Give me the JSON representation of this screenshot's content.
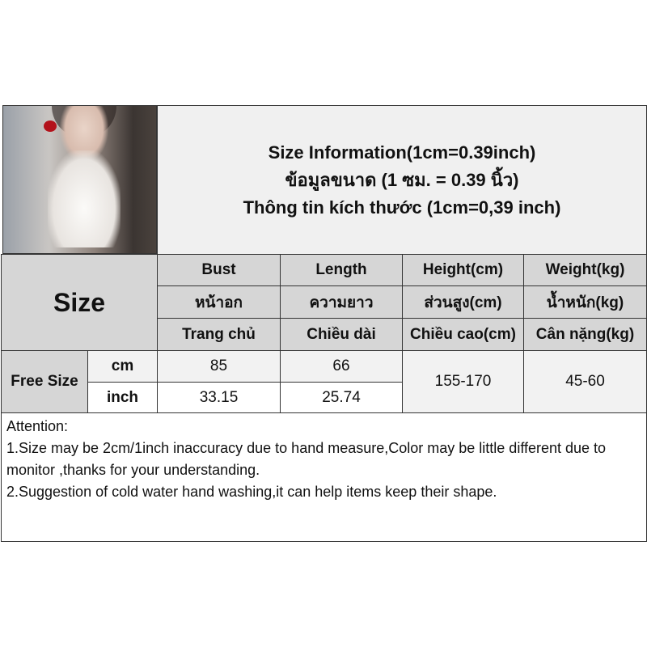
{
  "title": {
    "line1": "Size Information(1cm=0.39inch)",
    "line2": "ข้อมูลขนาด (1 ซม. = 0.39 นิ้ว)",
    "line3": "Thông tin kích thước (1cm=0,39 inch)"
  },
  "table": {
    "size_label": "Size",
    "columns": [
      {
        "en": "Bust",
        "th": "หน้าอก",
        "vi": "Trang chủ"
      },
      {
        "en": "Length",
        "th": "ความยาว",
        "vi": "Chiều dài"
      },
      {
        "en": "Height(cm)",
        "th": "ส่วนสูง(cm)",
        "vi": "Chiều cao(cm)"
      },
      {
        "en": "Weight(kg)",
        "th": "น้ำหนัก(kg)",
        "vi": "Cân nặng(kg)"
      }
    ],
    "row": {
      "size": "Free Size",
      "units": [
        "cm",
        "inch"
      ],
      "bust": [
        "85",
        "33.15"
      ],
      "length": [
        "66",
        "25.74"
      ],
      "height": "155-170",
      "weight": "45-60"
    }
  },
  "attention": {
    "heading": "Attention:",
    "line1": "1.Size may be 2cm/1inch inaccuracy due to hand measure,Color may be little different due to monitor ,thanks for your understanding.",
    "line2": "2.Suggestion of cold water hand washing,it can help items keep their shape."
  }
}
